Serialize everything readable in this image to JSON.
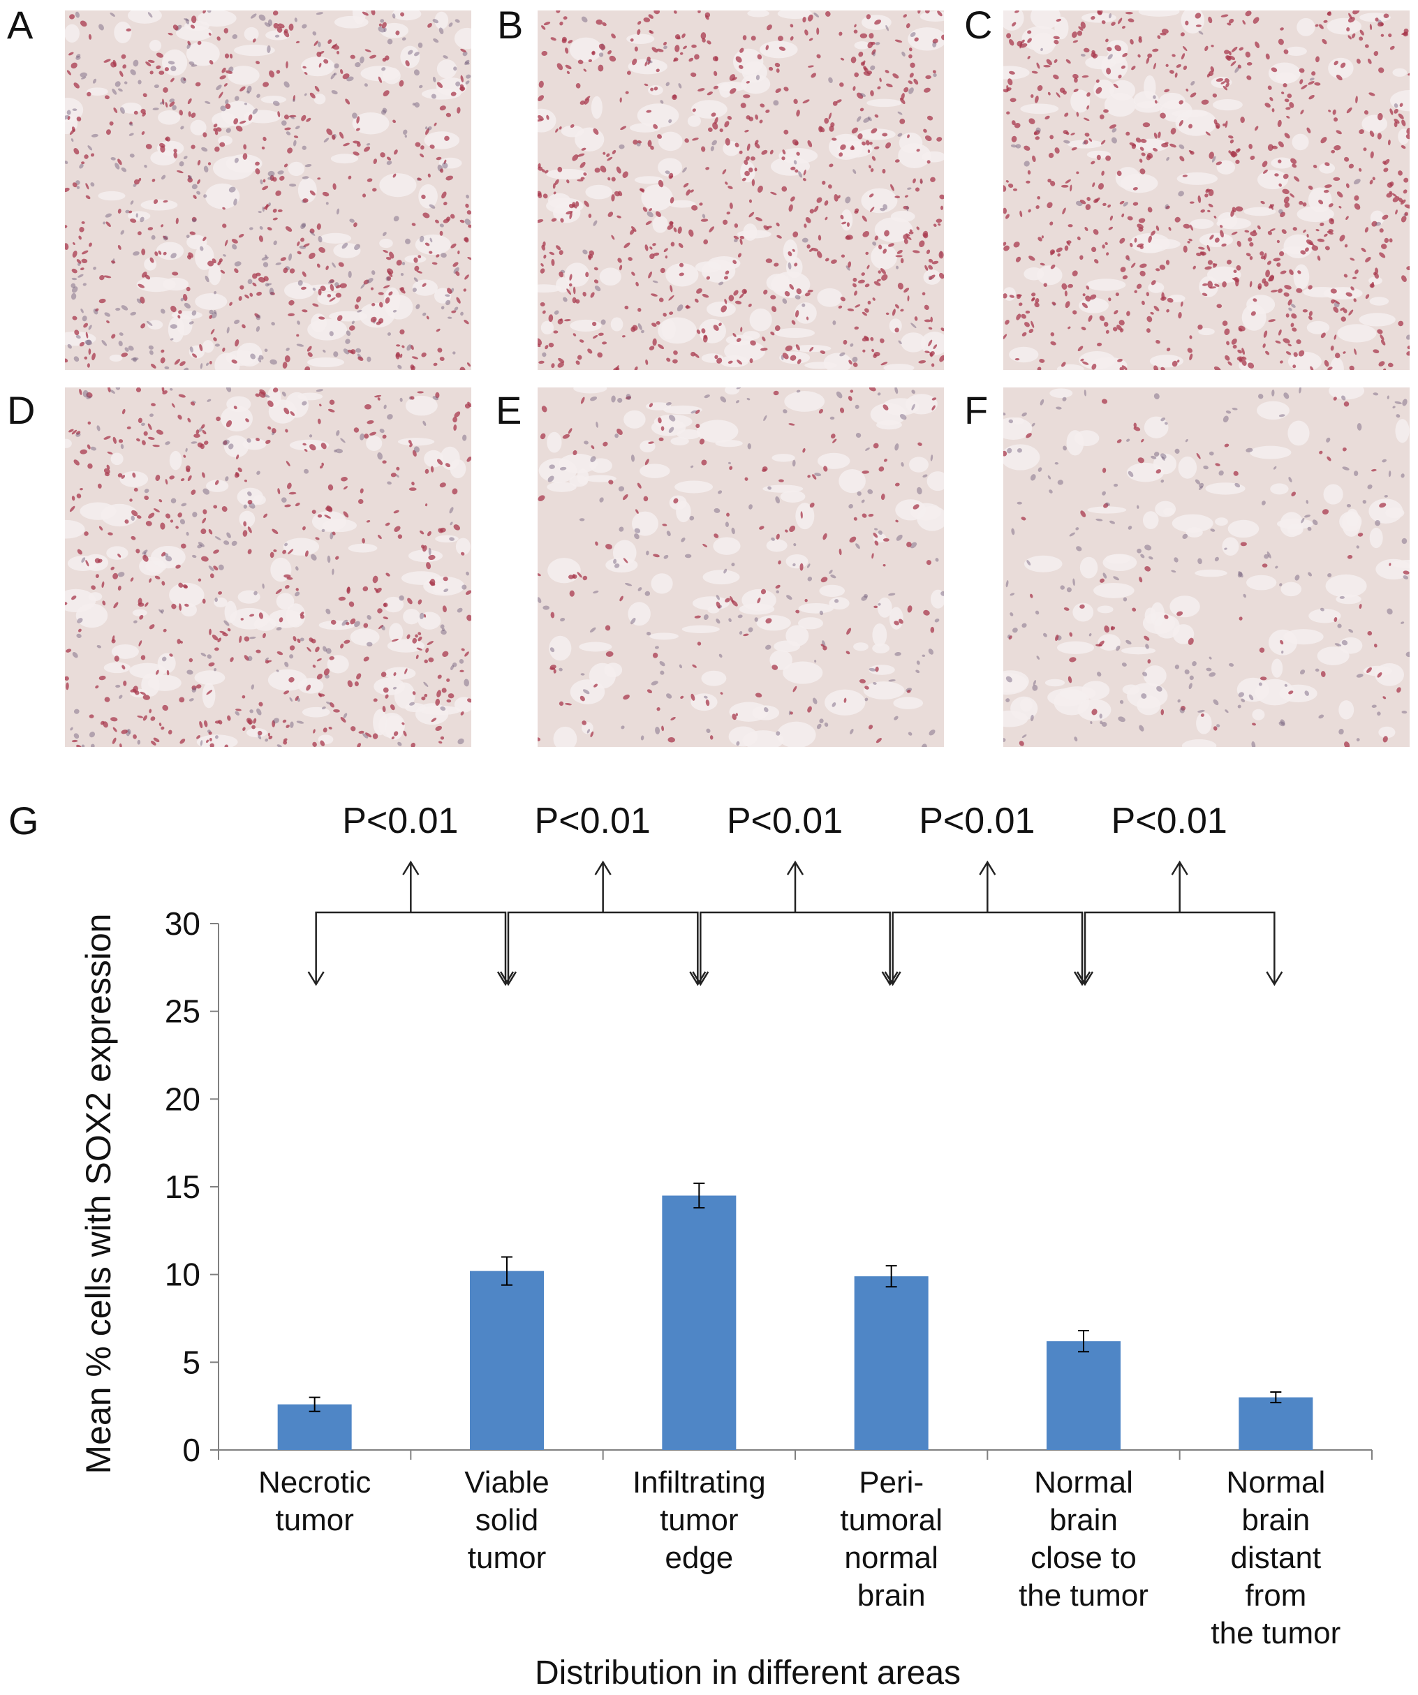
{
  "panels": [
    {
      "label": "A",
      "stain_density": 0.85,
      "stain_intensity": 0.55
    },
    {
      "label": "B",
      "stain_density": 0.8,
      "stain_intensity": 0.9
    },
    {
      "label": "C",
      "stain_density": 0.85,
      "stain_intensity": 0.95
    },
    {
      "label": "D",
      "stain_density": 0.7,
      "stain_intensity": 0.75
    },
    {
      "label": "E",
      "stain_density": 0.35,
      "stain_intensity": 0.5
    },
    {
      "label": "F",
      "stain_density": 0.3,
      "stain_intensity": 0.25
    }
  ],
  "chart_label": "G",
  "colors": {
    "bar": "#4f86c6",
    "tissue": "#e9dcd9",
    "stain": "#a83a4e",
    "hematoxylin": "#6e5a7a"
  },
  "chart_data": {
    "type": "bar",
    "categories": [
      [
        "Necrotic",
        "tumor"
      ],
      [
        "Viable",
        "solid",
        "tumor"
      ],
      [
        "Infiltrating",
        "tumor",
        "edge"
      ],
      [
        "Peri-",
        "tumoral",
        "normal",
        "brain"
      ],
      [
        "Normal",
        "brain",
        "close to",
        "the tumor"
      ],
      [
        "Normal",
        "brain",
        "distant",
        "from",
        "the tumor"
      ]
    ],
    "values": [
      2.6,
      10.2,
      14.5,
      9.9,
      6.2,
      3.0
    ],
    "errors": [
      0.4,
      0.8,
      0.7,
      0.6,
      0.6,
      0.3
    ],
    "ylabel": "Mean % cells with SOX2 expression",
    "xlabel": "Distribution in different areas",
    "ylim": [
      0,
      30
    ],
    "yticks": [
      0,
      5,
      10,
      15,
      20,
      25,
      30
    ],
    "grid": false,
    "comparisons": [
      {
        "pair": [
          0,
          1
        ],
        "label": "P<0.01"
      },
      {
        "pair": [
          1,
          2
        ],
        "label": "P<0.01"
      },
      {
        "pair": [
          2,
          3
        ],
        "label": "P<0.01"
      },
      {
        "pair": [
          3,
          4
        ],
        "label": "P<0.01"
      },
      {
        "pair": [
          4,
          5
        ],
        "label": "P<0.01"
      }
    ]
  }
}
